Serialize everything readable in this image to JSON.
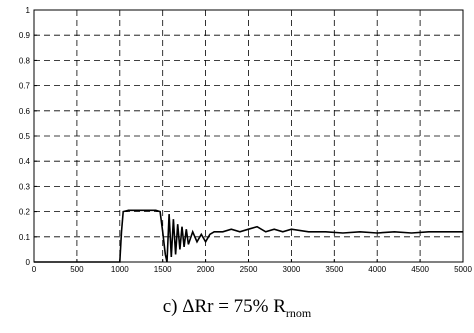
{
  "chart_data": {
    "type": "line",
    "title": "",
    "xlabel": "",
    "ylabel": "",
    "xlim": [
      0,
      5000
    ],
    "ylim": [
      0,
      1
    ],
    "x_ticks": [
      "0",
      "500",
      "1000",
      "1500",
      "2000",
      "2500",
      "3000",
      "3500",
      "4000",
      "4500",
      "5000"
    ],
    "y_ticks": [
      "0",
      "0.1",
      "0.2",
      "0.3",
      "0.4",
      "0.5",
      "0.6",
      "0.7",
      "0.8",
      "0.9",
      "1"
    ],
    "grid": true,
    "series": [
      {
        "color": "#000000",
        "points": [
          [
            0,
            0
          ],
          [
            1000,
            0
          ],
          [
            1020,
            0.12
          ],
          [
            1040,
            0.2
          ],
          [
            1100,
            0.205
          ],
          [
            1200,
            0.205
          ],
          [
            1300,
            0.205
          ],
          [
            1420,
            0.205
          ],
          [
            1470,
            0.2
          ],
          [
            1500,
            0.12
          ],
          [
            1530,
            0.03
          ],
          [
            1550,
            0
          ],
          [
            1575,
            0.19
          ],
          [
            1600,
            0.02
          ],
          [
            1625,
            0.17
          ],
          [
            1650,
            0.03
          ],
          [
            1675,
            0.15
          ],
          [
            1700,
            0.05
          ],
          [
            1725,
            0.14
          ],
          [
            1750,
            0.06
          ],
          [
            1775,
            0.13
          ],
          [
            1800,
            0.07
          ],
          [
            1850,
            0.12
          ],
          [
            1900,
            0.08
          ],
          [
            1950,
            0.11
          ],
          [
            2000,
            0.08
          ],
          [
            2050,
            0.11
          ],
          [
            2100,
            0.12
          ],
          [
            2200,
            0.12
          ],
          [
            2300,
            0.13
          ],
          [
            2400,
            0.12
          ],
          [
            2500,
            0.13
          ],
          [
            2600,
            0.14
          ],
          [
            2700,
            0.12
          ],
          [
            2800,
            0.13
          ],
          [
            2900,
            0.12
          ],
          [
            3000,
            0.13
          ],
          [
            3200,
            0.12
          ],
          [
            3400,
            0.12
          ],
          [
            3600,
            0.115
          ],
          [
            3800,
            0.12
          ],
          [
            4000,
            0.115
          ],
          [
            4200,
            0.12
          ],
          [
            4400,
            0.115
          ],
          [
            4600,
            0.12
          ],
          [
            4800,
            0.12
          ],
          [
            5000,
            0.12
          ]
        ]
      }
    ]
  },
  "caption": {
    "prefix": "c) ΔRr = 75% R",
    "subscript": "rnom"
  }
}
